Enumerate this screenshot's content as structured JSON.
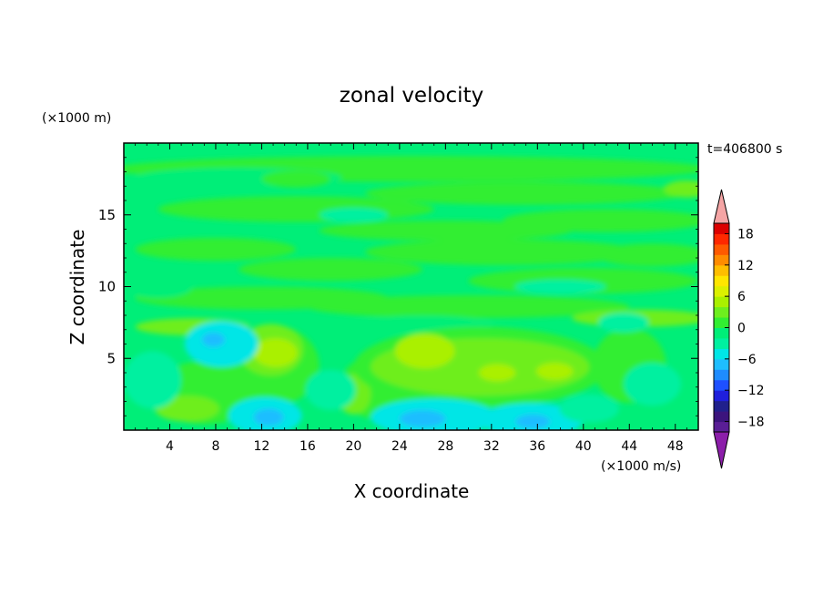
{
  "chart_data": {
    "type": "heatmap",
    "title": "zonal velocity",
    "xlabel": "X coordinate",
    "ylabel": "Z coordinate",
    "x_unit_label": "(×1000 m/s)",
    "y_unit_label": "(×1000 m)",
    "time_label": "t=406800 s",
    "xlim": [
      0,
      50
    ],
    "ylim": [
      0,
      20
    ],
    "x_ticks": [
      4,
      8,
      12,
      16,
      20,
      24,
      28,
      32,
      36,
      40,
      44,
      48
    ],
    "y_ticks": [
      5,
      10,
      15
    ],
    "colorbar": {
      "min": -20,
      "max": 20,
      "step": 2,
      "tick_values": [
        18,
        12,
        6,
        0,
        -6,
        -12,
        -18
      ],
      "tick_labels": [
        "18",
        "12",
        "6",
        "0",
        "−6",
        "−12",
        "−18"
      ],
      "colors": [
        "#5a1e96",
        "#3c147d",
        "#20208c",
        "#1f1fdc",
        "#1e50ff",
        "#1e8cff",
        "#1ebeff",
        "#00e6e6",
        "#00f0a0",
        "#00ee78",
        "#32ee32",
        "#6eee1e",
        "#aaf000",
        "#dcf000",
        "#ffe600",
        "#ffbe00",
        "#ff8c00",
        "#ff5a00",
        "#ff2800",
        "#dc0000"
      ],
      "under_color": "#8c1eaa",
      "over_color": "#f5a5a5"
    },
    "field_summary": {
      "background_range": [
        -3,
        3
      ],
      "features": [
        {
          "description": "warm lobe",
          "x": 12.7,
          "z": 5.5,
          "peak": 6
        },
        {
          "description": "warm lobe",
          "x": 25.5,
          "z": 5.6,
          "peak": 6
        },
        {
          "description": "warm lobe",
          "x": 32,
          "z": 4,
          "peak": 5
        },
        {
          "description": "warm lobe",
          "x": 37,
          "z": 4,
          "peak": 5
        },
        {
          "description": "cold pocket",
          "x": 12.5,
          "z": 1,
          "peak": -8
        },
        {
          "description": "cold pocket",
          "x": 26,
          "z": 0.8,
          "peak": -7
        },
        {
          "description": "cold pocket",
          "x": 35.5,
          "z": 0.6,
          "peak": -8
        },
        {
          "description": "cold pocket",
          "x": 7.5,
          "z": 6.3,
          "peak": -8
        }
      ]
    }
  }
}
